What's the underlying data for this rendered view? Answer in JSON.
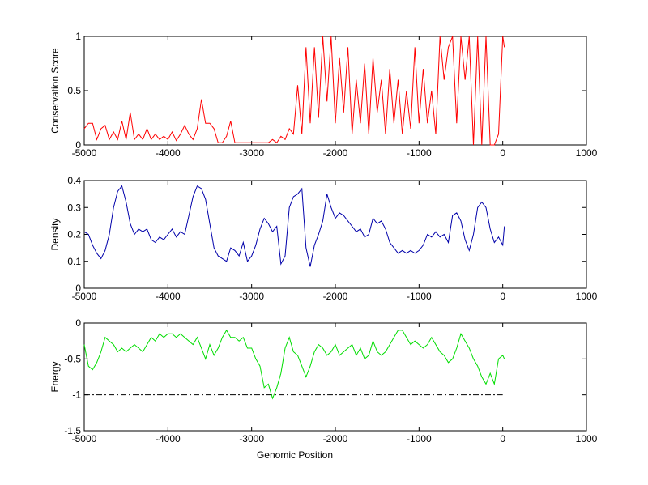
{
  "chart_data": [
    {
      "type": "line",
      "ylabel": "Conservation Score",
      "xlabel": "",
      "xlim": [
        -5000,
        1000
      ],
      "ylim": [
        0,
        1
      ],
      "xticks": [
        -5000,
        -4000,
        -3000,
        -2000,
        -1000,
        0,
        1000
      ],
      "yticks": [
        0,
        0.5,
        1
      ],
      "ytick_labels": [
        "0",
        "0.5",
        "1"
      ],
      "color": "#ff0000",
      "series": [
        {
          "x": [
            -5000,
            -4950,
            -4900,
            -4850,
            -4800,
            -4750,
            -4700,
            -4650,
            -4600,
            -4550,
            -4500,
            -4450,
            -4400,
            -4350,
            -4300,
            -4250,
            -4200,
            -4150,
            -4100,
            -4050,
            -4000,
            -3950,
            -3900,
            -3850,
            -3800,
            -3750,
            -3700,
            -3650,
            -3600,
            -3550,
            -3500,
            -3450,
            -3400,
            -3350,
            -3300,
            -3250,
            -3200,
            -3150,
            -3100,
            -3050,
            -3000,
            -2950,
            -2900,
            -2850,
            -2800,
            -2750,
            -2700,
            -2650,
            -2600,
            -2550,
            -2500,
            -2450,
            -2400,
            -2350,
            -2300,
            -2250,
            -2200,
            -2150,
            -2100,
            -2050,
            -2000,
            -1950,
            -1900,
            -1850,
            -1800,
            -1750,
            -1700,
            -1650,
            -1600,
            -1550,
            -1500,
            -1450,
            -1400,
            -1350,
            -1300,
            -1250,
            -1200,
            -1150,
            -1100,
            -1050,
            -1000,
            -950,
            -900,
            -850,
            -800,
            -750,
            -700,
            -650,
            -600,
            -550,
            -500,
            -450,
            -400,
            -350,
            -300,
            -250,
            -200,
            -150,
            -100,
            -50,
            0,
            20
          ],
          "y": [
            0.15,
            0.2,
            0.2,
            0.05,
            0.15,
            0.18,
            0.05,
            0.12,
            0.05,
            0.22,
            0.05,
            0.3,
            0.05,
            0.1,
            0.05,
            0.15,
            0.05,
            0.1,
            0.05,
            0.08,
            0.05,
            0.12,
            0.04,
            0.1,
            0.18,
            0.1,
            0.05,
            0.15,
            0.42,
            0.2,
            0.2,
            0.15,
            0.02,
            0.02,
            0.08,
            0.22,
            0.02,
            0.02,
            0.02,
            0.02,
            0.02,
            0.02,
            0.02,
            0.02,
            0.02,
            0.05,
            0.02,
            0.08,
            0.05,
            0.15,
            0.1,
            0.55,
            0.1,
            0.9,
            0.2,
            0.9,
            0.25,
            1.0,
            0.4,
            1.0,
            0.2,
            0.8,
            0.3,
            0.9,
            0.1,
            0.6,
            0.2,
            0.75,
            0.1,
            0.8,
            0.3,
            0.6,
            0.1,
            0.7,
            0.2,
            0.6,
            0.1,
            0.5,
            0.15,
            0.9,
            0.2,
            0.7,
            0.2,
            0.5,
            0.1,
            1.0,
            0.6,
            0.9,
            1.0,
            0.2,
            1.0,
            0.6,
            1.0,
            0.0,
            1.0,
            0.0,
            1.0,
            0.0,
            0.0,
            0.1,
            1.0,
            0.9
          ]
        }
      ]
    },
    {
      "type": "line",
      "ylabel": "Density",
      "xlabel": "",
      "xlim": [
        -5000,
        1000
      ],
      "ylim": [
        0,
        0.4
      ],
      "xticks": [
        -5000,
        -4000,
        -3000,
        -2000,
        -1000,
        0,
        1000
      ],
      "yticks": [
        0,
        0.1,
        0.2,
        0.3,
        0.4
      ],
      "ytick_labels": [
        "0",
        "0.1",
        "0.2",
        "0.3",
        "0.4"
      ],
      "color": "#0000aa",
      "series": [
        {
          "x": [
            -5000,
            -4950,
            -4900,
            -4850,
            -4800,
            -4750,
            -4700,
            -4650,
            -4600,
            -4550,
            -4500,
            -4450,
            -4400,
            -4350,
            -4300,
            -4250,
            -4200,
            -4150,
            -4100,
            -4050,
            -4000,
            -3950,
            -3900,
            -3850,
            -3800,
            -3750,
            -3700,
            -3650,
            -3600,
            -3550,
            -3500,
            -3450,
            -3400,
            -3350,
            -3300,
            -3250,
            -3200,
            -3150,
            -3100,
            -3050,
            -3000,
            -2950,
            -2900,
            -2850,
            -2800,
            -2750,
            -2700,
            -2650,
            -2600,
            -2550,
            -2500,
            -2450,
            -2400,
            -2350,
            -2300,
            -2250,
            -2200,
            -2150,
            -2100,
            -2050,
            -2000,
            -1950,
            -1900,
            -1850,
            -1800,
            -1750,
            -1700,
            -1650,
            -1600,
            -1550,
            -1500,
            -1450,
            -1400,
            -1350,
            -1300,
            -1250,
            -1200,
            -1150,
            -1100,
            -1050,
            -1000,
            -950,
            -900,
            -850,
            -800,
            -750,
            -700,
            -650,
            -600,
            -550,
            -500,
            -450,
            -400,
            -350,
            -300,
            -250,
            -200,
            -150,
            -100,
            -50,
            0,
            20
          ],
          "y": [
            0.21,
            0.2,
            0.16,
            0.13,
            0.11,
            0.14,
            0.2,
            0.3,
            0.36,
            0.38,
            0.32,
            0.24,
            0.2,
            0.22,
            0.21,
            0.22,
            0.18,
            0.17,
            0.19,
            0.18,
            0.2,
            0.22,
            0.19,
            0.21,
            0.2,
            0.27,
            0.34,
            0.38,
            0.37,
            0.33,
            0.24,
            0.15,
            0.12,
            0.11,
            0.1,
            0.15,
            0.14,
            0.12,
            0.17,
            0.1,
            0.12,
            0.16,
            0.22,
            0.26,
            0.24,
            0.21,
            0.23,
            0.09,
            0.12,
            0.3,
            0.34,
            0.35,
            0.37,
            0.15,
            0.08,
            0.16,
            0.2,
            0.25,
            0.35,
            0.3,
            0.26,
            0.28,
            0.27,
            0.25,
            0.23,
            0.21,
            0.22,
            0.19,
            0.2,
            0.26,
            0.24,
            0.25,
            0.22,
            0.17,
            0.15,
            0.13,
            0.14,
            0.13,
            0.14,
            0.13,
            0.14,
            0.16,
            0.2,
            0.19,
            0.21,
            0.19,
            0.2,
            0.17,
            0.27,
            0.28,
            0.25,
            0.18,
            0.14,
            0.2,
            0.3,
            0.32,
            0.3,
            0.22,
            0.17,
            0.19,
            0.16,
            0.23
          ]
        }
      ]
    },
    {
      "type": "line",
      "ylabel": "Energy",
      "xlabel": "Genomic Position",
      "xlim": [
        -5000,
        1000
      ],
      "ylim": [
        -1.5,
        0
      ],
      "xticks": [
        -5000,
        -4000,
        -3000,
        -2000,
        -1000,
        0,
        1000
      ],
      "yticks": [
        -1.5,
        -1,
        -0.5,
        0
      ],
      "ytick_labels": [
        "-1.5",
        "-1",
        "-0.5",
        "0"
      ],
      "color": "#00dd00",
      "reference_line": {
        "y": -1,
        "x_range": [
          -5000,
          0
        ],
        "style": "dash-dot",
        "color": "#000000"
      },
      "series": [
        {
          "x": [
            -5000,
            -4950,
            -4900,
            -4850,
            -4800,
            -4750,
            -4700,
            -4650,
            -4600,
            -4550,
            -4500,
            -4450,
            -4400,
            -4350,
            -4300,
            -4250,
            -4200,
            -4150,
            -4100,
            -4050,
            -4000,
            -3950,
            -3900,
            -3850,
            -3800,
            -3750,
            -3700,
            -3650,
            -3600,
            -3550,
            -3500,
            -3450,
            -3400,
            -3350,
            -3300,
            -3250,
            -3200,
            -3150,
            -3100,
            -3050,
            -3000,
            -2950,
            -2900,
            -2850,
            -2800,
            -2750,
            -2700,
            -2650,
            -2600,
            -2550,
            -2500,
            -2450,
            -2400,
            -2350,
            -2300,
            -2250,
            -2200,
            -2150,
            -2100,
            -2050,
            -2000,
            -1950,
            -1900,
            -1850,
            -1800,
            -1750,
            -1700,
            -1650,
            -1600,
            -1550,
            -1500,
            -1450,
            -1400,
            -1350,
            -1300,
            -1250,
            -1200,
            -1150,
            -1100,
            -1050,
            -1000,
            -950,
            -900,
            -850,
            -800,
            -750,
            -700,
            -650,
            -600,
            -550,
            -500,
            -450,
            -400,
            -350,
            -300,
            -250,
            -200,
            -150,
            -100,
            -50,
            0,
            20
          ],
          "y": [
            -0.3,
            -0.6,
            -0.65,
            -0.55,
            -0.4,
            -0.2,
            -0.25,
            -0.3,
            -0.4,
            -0.35,
            -0.4,
            -0.35,
            -0.3,
            -0.35,
            -0.4,
            -0.3,
            -0.2,
            -0.25,
            -0.15,
            -0.2,
            -0.15,
            -0.15,
            -0.2,
            -0.15,
            -0.2,
            -0.25,
            -0.3,
            -0.2,
            -0.35,
            -0.5,
            -0.3,
            -0.45,
            -0.35,
            -0.2,
            -0.1,
            -0.2,
            -0.2,
            -0.25,
            -0.2,
            -0.35,
            -0.35,
            -0.5,
            -0.6,
            -0.9,
            -0.85,
            -1.05,
            -0.9,
            -0.7,
            -0.35,
            -0.2,
            -0.4,
            -0.45,
            -0.6,
            -0.75,
            -0.6,
            -0.4,
            -0.3,
            -0.35,
            -0.45,
            -0.4,
            -0.3,
            -0.45,
            -0.4,
            -0.35,
            -0.3,
            -0.45,
            -0.35,
            -0.5,
            -0.45,
            -0.25,
            -0.4,
            -0.45,
            -0.4,
            -0.3,
            -0.2,
            -0.1,
            -0.1,
            -0.2,
            -0.3,
            -0.25,
            -0.3,
            -0.35,
            -0.3,
            -0.2,
            -0.3,
            -0.4,
            -0.45,
            -0.55,
            -0.5,
            -0.35,
            -0.15,
            -0.25,
            -0.35,
            -0.5,
            -0.6,
            -0.75,
            -0.85,
            -0.7,
            -0.85,
            -0.5,
            -0.45,
            -0.5
          ]
        }
      ]
    }
  ]
}
